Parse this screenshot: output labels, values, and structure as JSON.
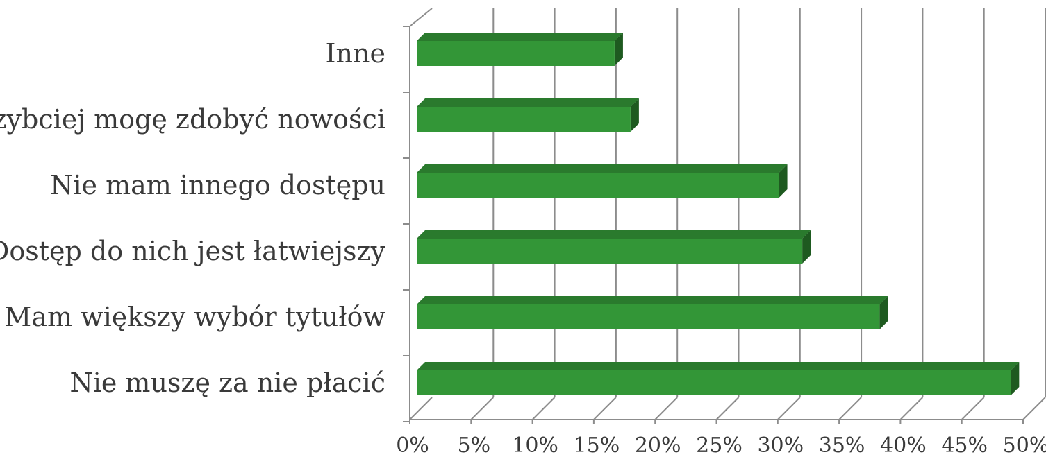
{
  "chart_data": {
    "type": "bar",
    "orientation": "horizontal",
    "three_d": true,
    "categories": [
      "Nie muszę za nie płacić",
      "Mam większy wybór tytułów",
      "Dostęp do nich jest łatwiejszy",
      "Nie mam innego dostępu",
      "Szybciej mogę zdobyć nowości",
      "Inne"
    ],
    "values": [
      0.49,
      0.383,
      0.32,
      0.301,
      0.18,
      0.167
    ],
    "xlim": [
      0,
      0.5
    ],
    "x_ticks": [
      "0%",
      "5%",
      "10%",
      "15%",
      "20%",
      "25%",
      "30%",
      "35%",
      "40%",
      "45%",
      "50%"
    ],
    "grid": true,
    "legend": "none",
    "colors": {
      "bar_front": "#339637",
      "bar_top": "#2a7a2d",
      "bar_side": "#1e5a20",
      "grid": "#8c8c8c",
      "text": "#3a3a3a"
    }
  }
}
